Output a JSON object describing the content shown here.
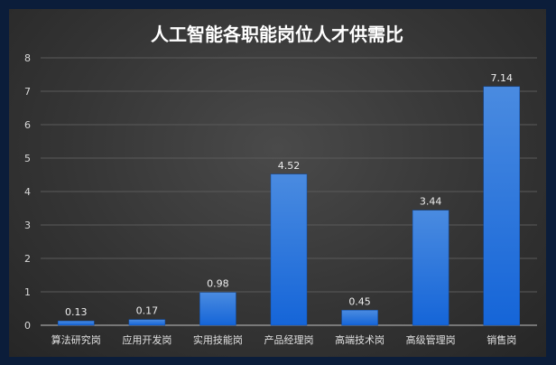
{
  "chart_data": {
    "type": "bar",
    "title": "人工智能各职能岗位人才供需比",
    "categories": [
      "算法研究岗",
      "应用开发岗",
      "实用技能岗",
      "产品经理岗",
      "高端技术岗",
      "高级管理岗",
      "销售岗"
    ],
    "values": [
      0.13,
      0.17,
      0.98,
      4.52,
      0.45,
      3.44,
      7.14
    ],
    "data_labels": [
      "0.13",
      "0.17",
      "0.98",
      "4.52",
      "0.45",
      "3.44",
      "7.14"
    ],
    "y_ticks": [
      "0",
      "1",
      "2",
      "3",
      "4",
      "5",
      "6",
      "7",
      "8"
    ],
    "ylim": [
      0,
      8
    ],
    "grid": true,
    "bar_color": "#1565d8",
    "bar_color_light": "#4a8be0",
    "xlabel": "",
    "ylabel": ""
  }
}
